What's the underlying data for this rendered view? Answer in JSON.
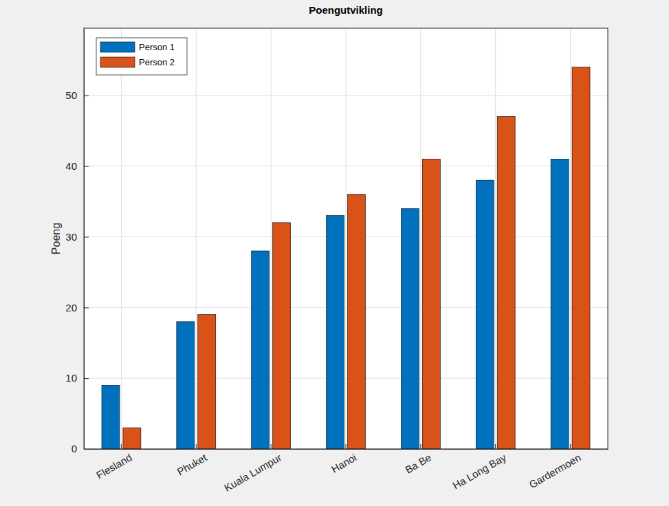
{
  "chart_data": {
    "type": "bar",
    "title": "Poengutvikling",
    "y_label": "Poeng",
    "categories": [
      "Flesland",
      "Phuket",
      "Kuala Lumpur",
      "Hanoi",
      "Ba Be",
      "Ha Long Bay",
      "Gardermoen"
    ],
    "series": [
      {
        "name": "Person 1",
        "color": "#0072bd",
        "values": [
          9,
          18,
          28,
          33,
          34,
          38,
          41
        ]
      },
      {
        "name": "Person 2",
        "color": "#d95319",
        "values": [
          3,
          19,
          32,
          36,
          41,
          47,
          54
        ]
      }
    ],
    "ylim": [
      0,
      59.5
    ],
    "yticks": [
      0,
      10,
      20,
      30,
      40,
      50
    ],
    "grid": true,
    "legend": "upper-left"
  }
}
